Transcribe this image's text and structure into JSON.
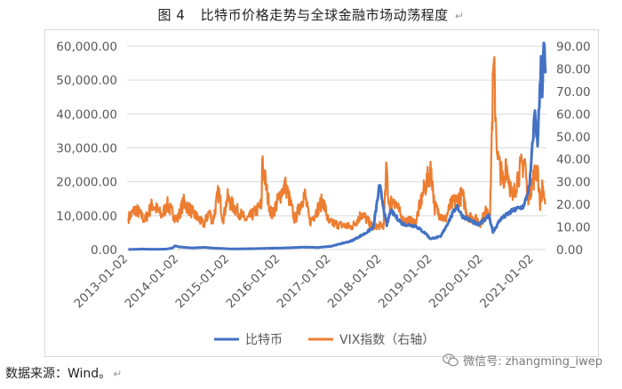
{
  "header": {
    "figure_no": "图 4",
    "title": "比特币价格走势与全球金融市场动荡程度",
    "return_mark": "↵"
  },
  "footer": {
    "source": "数据来源：Wind。",
    "source_mark": "↵",
    "watermark": "微信号: zhangming_iwep"
  },
  "colors": {
    "bitcoin": "#4472C4",
    "vix": "#ED7D31",
    "axis_text": "#595959",
    "grid": "#d9d9d9"
  },
  "chart_data": {
    "type": "line",
    "title": "比特币价格走势与全球金融市场动荡程度",
    "x_ticks": [
      "2013-01-02",
      "2014-01-02",
      "2015-01-02",
      "2016-01-02",
      "2017-01-02",
      "2018-01-02",
      "2019-01-02",
      "2020-01-02",
      "2021-01-02"
    ],
    "y_left": {
      "min": 0,
      "max": 60000,
      "ticks": [
        "0.00",
        "10,000.00",
        "20,000.00",
        "30,000.00",
        "40,000.00",
        "50,000.00",
        "60,000.00"
      ]
    },
    "y_right": {
      "min": 0,
      "max": 90,
      "ticks": [
        "0.00",
        "10.00",
        "20.00",
        "30.00",
        "40.00",
        "50.00",
        "60.00",
        "70.00",
        "80.00",
        "90.00"
      ]
    },
    "legend_position": "bottom",
    "grid": "horizontal",
    "series": [
      {
        "name": "比特币",
        "axis": "left",
        "points": [
          [
            "2013-01-02",
            13
          ],
          [
            "2013-04-10",
            150
          ],
          [
            "2013-07-01",
            90
          ],
          [
            "2013-10-01",
            130
          ],
          [
            "2013-11-15",
            450
          ],
          [
            "2013-12-04",
            1100
          ],
          [
            "2014-01-02",
            800
          ],
          [
            "2014-04-01",
            480
          ],
          [
            "2014-07-01",
            640
          ],
          [
            "2014-10-01",
            380
          ],
          [
            "2015-01-14",
            180
          ],
          [
            "2015-07-01",
            260
          ],
          [
            "2015-11-04",
            400
          ],
          [
            "2016-01-02",
            430
          ],
          [
            "2016-06-18",
            720
          ],
          [
            "2016-10-01",
            610
          ],
          [
            "2017-01-02",
            1000
          ],
          [
            "2017-05-25",
            2500
          ],
          [
            "2017-09-01",
            4700
          ],
          [
            "2017-11-01",
            6500
          ],
          [
            "2017-12-17",
            19000
          ],
          [
            "2018-02-06",
            7000
          ],
          [
            "2018-03-05",
            11500
          ],
          [
            "2018-06-01",
            7500
          ],
          [
            "2018-09-01",
            7000
          ],
          [
            "2018-11-20",
            4500
          ],
          [
            "2018-12-15",
            3200
          ],
          [
            "2019-03-01",
            3800
          ],
          [
            "2019-06-26",
            13000
          ],
          [
            "2019-08-01",
            10000
          ],
          [
            "2019-12-01",
            7200
          ],
          [
            "2020-02-12",
            10300
          ],
          [
            "2020-03-12",
            5000
          ],
          [
            "2020-05-01",
            8800
          ],
          [
            "2020-08-01",
            11500
          ],
          [
            "2020-10-21",
            12800
          ],
          [
            "2020-12-01",
            19000
          ],
          [
            "2021-01-08",
            41000
          ],
          [
            "2021-01-27",
            30500
          ],
          [
            "2021-02-21",
            57000
          ],
          [
            "2021-03-01",
            45000
          ],
          [
            "2021-03-13",
            61000
          ],
          [
            "2021-03-25",
            52000
          ]
        ]
      },
      {
        "name": "VIX指数（右轴）",
        "axis": "right",
        "points": [
          [
            "2013-01-02",
            14
          ],
          [
            "2013-02-25",
            18
          ],
          [
            "2013-05-01",
            13
          ],
          [
            "2013-06-24",
            20
          ],
          [
            "2013-09-01",
            15
          ],
          [
            "2013-10-08",
            20
          ],
          [
            "2013-12-20",
            13
          ],
          [
            "2014-02-03",
            21
          ],
          [
            "2014-04-15",
            16
          ],
          [
            "2014-07-01",
            11
          ],
          [
            "2014-08-08",
            17
          ],
          [
            "2014-09-01",
            12
          ],
          [
            "2014-10-15",
            26
          ],
          [
            "2014-11-15",
            13
          ],
          [
            "2014-12-16",
            23
          ],
          [
            "2015-01-15",
            20
          ],
          [
            "2015-05-01",
            13
          ],
          [
            "2015-07-10",
            17
          ],
          [
            "2015-08-20",
            20
          ],
          [
            "2015-08-24",
            40
          ],
          [
            "2015-09-30",
            24
          ],
          [
            "2015-11-01",
            15
          ],
          [
            "2016-01-20",
            27
          ],
          [
            "2016-02-11",
            28
          ],
          [
            "2016-04-15",
            13
          ],
          [
            "2016-06-24",
            25
          ],
          [
            "2016-08-01",
            12
          ],
          [
            "2016-11-04",
            22
          ],
          [
            "2016-12-15",
            12
          ],
          [
            "2017-03-01",
            11
          ],
          [
            "2017-06-01",
            10
          ],
          [
            "2017-08-11",
            16
          ],
          [
            "2017-11-01",
            9.5
          ],
          [
            "2018-01-15",
            11
          ],
          [
            "2018-02-05",
            37
          ],
          [
            "2018-02-20",
            20
          ],
          [
            "2018-04-01",
            22
          ],
          [
            "2018-06-01",
            13
          ],
          [
            "2018-09-01",
            12
          ],
          [
            "2018-10-25",
            25
          ],
          [
            "2018-12-24",
            36
          ],
          [
            "2019-01-15",
            19
          ],
          [
            "2019-04-01",
            13
          ],
          [
            "2019-05-15",
            20
          ],
          [
            "2019-08-05",
            24
          ],
          [
            "2019-09-15",
            15
          ],
          [
            "2019-12-15",
            12
          ],
          [
            "2020-01-31",
            18
          ],
          [
            "2020-02-20",
            15
          ],
          [
            "2020-02-28",
            40
          ],
          [
            "2020-03-16",
            82
          ],
          [
            "2020-04-15",
            40
          ],
          [
            "2020-06-01",
            28
          ],
          [
            "2020-06-11",
            40
          ],
          [
            "2020-08-01",
            22
          ],
          [
            "2020-09-08",
            33
          ],
          [
            "2020-10-28",
            40
          ],
          [
            "2020-11-15",
            23
          ],
          [
            "2021-01-27",
            37
          ],
          [
            "2021-02-12",
            20
          ],
          [
            "2021-03-04",
            28
          ],
          [
            "2021-03-25",
            20
          ]
        ]
      }
    ]
  }
}
